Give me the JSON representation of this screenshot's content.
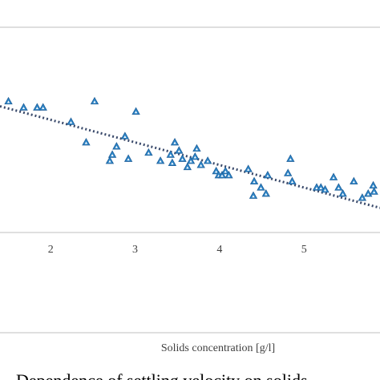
{
  "chart_data": {
    "type": "scatter",
    "title": "",
    "xlabel": "Solids concentration [g/l]",
    "ylabel": "",
    "xlim": [
      1.4,
      5.9
    ],
    "ylim": [
      0,
      1
    ],
    "x_ticks": [
      "2",
      "3",
      "4",
      "5"
    ],
    "grid": false,
    "legend": "none",
    "marker": "triangle",
    "marker_color": "#2E86C8",
    "trendline": {
      "style": "dotted",
      "color": "#3A4A6B",
      "x": [
        1.4,
        5.9
      ],
      "y": [
        0.615,
        0.12
      ]
    },
    "points": [
      {
        "x": 1.5,
        "y": 0.64
      },
      {
        "x": 1.68,
        "y": 0.61
      },
      {
        "x": 1.84,
        "y": 0.61
      },
      {
        "x": 1.91,
        "y": 0.61
      },
      {
        "x": 2.24,
        "y": 0.54
      },
      {
        "x": 2.52,
        "y": 0.64
      },
      {
        "x": 2.42,
        "y": 0.44
      },
      {
        "x": 2.7,
        "y": 0.35
      },
      {
        "x": 2.73,
        "y": 0.38
      },
      {
        "x": 2.78,
        "y": 0.42
      },
      {
        "x": 2.88,
        "y": 0.47
      },
      {
        "x": 2.92,
        "y": 0.36
      },
      {
        "x": 3.01,
        "y": 0.59
      },
      {
        "x": 3.16,
        "y": 0.39
      },
      {
        "x": 3.3,
        "y": 0.35
      },
      {
        "x": 3.42,
        "y": 0.38
      },
      {
        "x": 3.44,
        "y": 0.34
      },
      {
        "x": 3.47,
        "y": 0.44
      },
      {
        "x": 3.52,
        "y": 0.4
      },
      {
        "x": 3.56,
        "y": 0.36
      },
      {
        "x": 3.62,
        "y": 0.32
      },
      {
        "x": 3.66,
        "y": 0.35
      },
      {
        "x": 3.71,
        "y": 0.37
      },
      {
        "x": 3.73,
        "y": 0.41
      },
      {
        "x": 3.78,
        "y": 0.33
      },
      {
        "x": 3.86,
        "y": 0.35
      },
      {
        "x": 3.96,
        "y": 0.3
      },
      {
        "x": 3.99,
        "y": 0.28
      },
      {
        "x": 4.03,
        "y": 0.28
      },
      {
        "x": 4.07,
        "y": 0.3
      },
      {
        "x": 4.11,
        "y": 0.28
      },
      {
        "x": 4.34,
        "y": 0.31
      },
      {
        "x": 4.41,
        "y": 0.25
      },
      {
        "x": 4.4,
        "y": 0.18
      },
      {
        "x": 4.49,
        "y": 0.22
      },
      {
        "x": 4.55,
        "y": 0.19
      },
      {
        "x": 4.57,
        "y": 0.28
      },
      {
        "x": 4.81,
        "y": 0.29
      },
      {
        "x": 4.84,
        "y": 0.36
      },
      {
        "x": 4.86,
        "y": 0.25
      },
      {
        "x": 5.15,
        "y": 0.22
      },
      {
        "x": 5.2,
        "y": 0.22
      },
      {
        "x": 5.25,
        "y": 0.21
      },
      {
        "x": 5.35,
        "y": 0.27
      },
      {
        "x": 5.41,
        "y": 0.22
      },
      {
        "x": 5.46,
        "y": 0.19
      },
      {
        "x": 5.59,
        "y": 0.25
      },
      {
        "x": 5.69,
        "y": 0.17
      },
      {
        "x": 5.76,
        "y": 0.19
      },
      {
        "x": 5.82,
        "y": 0.23
      },
      {
        "x": 5.83,
        "y": 0.2
      }
    ]
  },
  "caption_fragment": "Dependence of settling velocity on solids"
}
